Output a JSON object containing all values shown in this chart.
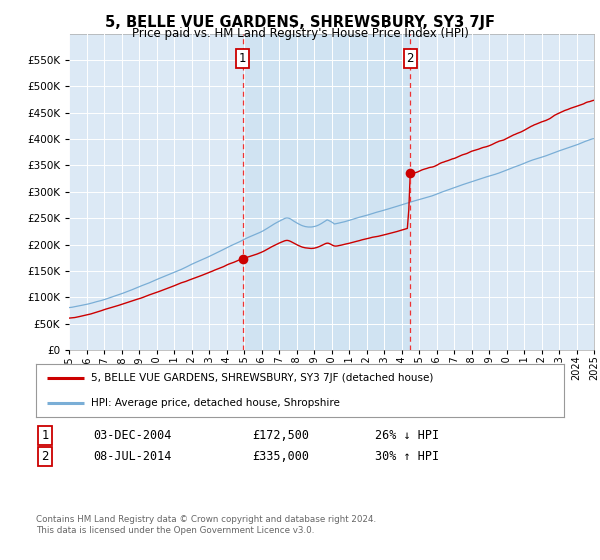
{
  "title": "5, BELLE VUE GARDENS, SHREWSBURY, SY3 7JF",
  "subtitle": "Price paid vs. HM Land Registry's House Price Index (HPI)",
  "ylim": [
    0,
    600000
  ],
  "yticks": [
    0,
    50000,
    100000,
    150000,
    200000,
    250000,
    300000,
    350000,
    400000,
    450000,
    500000,
    550000,
    600000
  ],
  "background_color": "#dce9f5",
  "plot_bg": "#dce9f5",
  "highlight_bg": "#cce0f0",
  "sale1_t": 9.92,
  "sale1_price": 172500,
  "sale2_t": 19.5,
  "sale2_price": 335000,
  "legend_line1": "5, BELLE VUE GARDENS, SHREWSBURY, SY3 7JF (detached house)",
  "legend_line2": "HPI: Average price, detached house, Shropshire",
  "footer": "Contains HM Land Registry data © Crown copyright and database right 2024.\nThis data is licensed under the Open Government Licence v3.0.",
  "hpi_color": "#7aaed6",
  "price_color": "#cc0000",
  "vline_color": "#ee3333"
}
